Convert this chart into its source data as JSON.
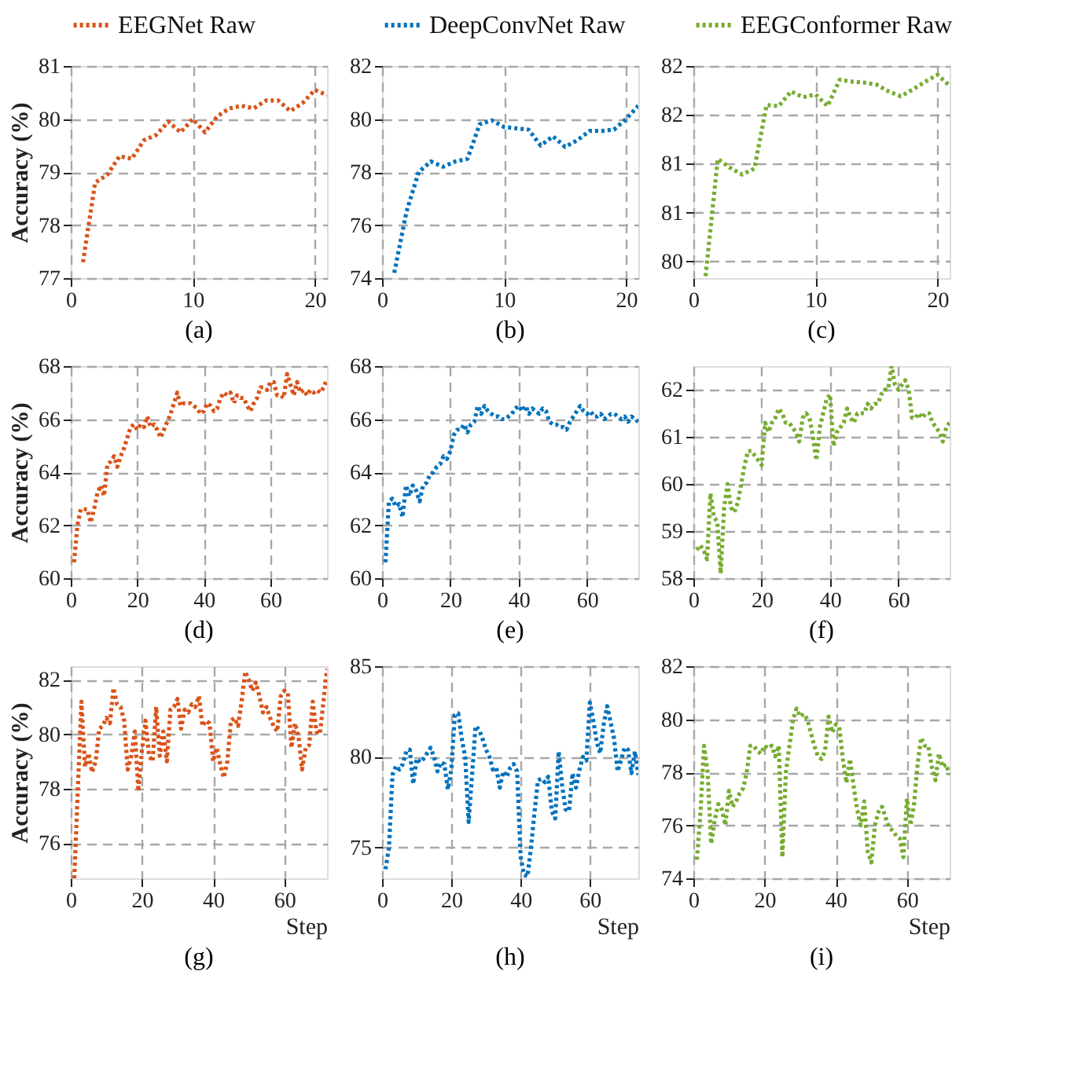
{
  "chart_data": [
    {
      "type": "line",
      "title": "(a)",
      "ylabel": "Accuracy (%)",
      "legend": "top",
      "grid": true,
      "line_style": "dotted",
      "xlim": [
        0,
        21
      ],
      "xticks": [
        0,
        10,
        20
      ],
      "ylim": [
        77,
        81
      ],
      "yticks": [
        77,
        78,
        79,
        80,
        81
      ],
      "x": [
        1,
        2,
        3,
        4,
        5,
        6,
        7,
        8,
        9,
        10,
        11,
        12,
        13,
        14,
        15,
        16,
        17,
        18,
        19,
        20,
        21
      ],
      "series": [
        {
          "name": "EEGNet Raw",
          "color": "#d95319",
          "values": [
            77.3,
            78.8,
            78.95,
            79.3,
            79.25,
            79.6,
            79.7,
            79.95,
            79.75,
            80.0,
            79.75,
            80.05,
            80.2,
            80.25,
            80.2,
            80.35,
            80.35,
            80.15,
            80.3,
            80.55,
            80.45
          ]
        }
      ]
    },
    {
      "type": "line",
      "title": "(b)",
      "legend": "top",
      "grid": true,
      "line_style": "dotted",
      "xlim": [
        0,
        21
      ],
      "xticks": [
        0,
        10,
        20
      ],
      "ylim": [
        74,
        82
      ],
      "yticks": [
        74,
        76,
        78,
        80,
        82
      ],
      "x": [
        1,
        2,
        3,
        4,
        5,
        6,
        7,
        8,
        9,
        10,
        11,
        12,
        13,
        14,
        15,
        16,
        17,
        18,
        19,
        20,
        21
      ],
      "series": [
        {
          "name": "DeepConvNet Raw",
          "color": "#0072bd",
          "values": [
            74.2,
            76.5,
            78.0,
            78.4,
            78.2,
            78.4,
            78.5,
            79.8,
            79.95,
            79.7,
            79.65,
            79.6,
            79.0,
            79.35,
            78.95,
            79.2,
            79.55,
            79.55,
            79.6,
            80.0,
            80.5
          ]
        }
      ]
    },
    {
      "type": "line",
      "title": "(c)",
      "legend": "top",
      "grid": true,
      "line_style": "dotted",
      "xlim": [
        0,
        21
      ],
      "xticks": [
        0,
        10,
        20
      ],
      "ylim": [
        79.83,
        82
      ],
      "yticks": [
        80,
        {
          "value": 80.5,
          "label": "81"
        },
        81,
        {
          "value": 81.5,
          "label": "82"
        },
        82
      ],
      "x": [
        1,
        2,
        3,
        4,
        5,
        6,
        7,
        8,
        9,
        10,
        11,
        12,
        13,
        14,
        15,
        16,
        17,
        18,
        19,
        20,
        21
      ],
      "series": [
        {
          "name": "EEGConformer Raw",
          "color": "#77ac30",
          "values": [
            79.85,
            81.05,
            80.96,
            80.89,
            80.95,
            81.6,
            81.59,
            81.74,
            81.68,
            81.71,
            81.59,
            81.86,
            81.84,
            81.83,
            81.81,
            81.74,
            81.69,
            81.76,
            81.84,
            81.91,
            81.8
          ]
        }
      ]
    },
    {
      "type": "line",
      "title": "(d)",
      "ylabel": "Accuracy (%)",
      "grid": true,
      "line_style": "dotted",
      "xlim": [
        0,
        77
      ],
      "xticks": [
        0,
        20,
        40,
        60
      ],
      "ylim": [
        60,
        68
      ],
      "yticks": [
        60,
        62,
        64,
        66,
        68
      ],
      "x": [
        1,
        2,
        3,
        4,
        5,
        6,
        7,
        8,
        9,
        10,
        11,
        12,
        13,
        14,
        15,
        16,
        17,
        18,
        19,
        20,
        21,
        22,
        23,
        24,
        25,
        26,
        27,
        28,
        29,
        30,
        31,
        32,
        33,
        34,
        35,
        36,
        37,
        38,
        39,
        40,
        41,
        42,
        43,
        44,
        45,
        46,
        47,
        48,
        49,
        50,
        51,
        52,
        53,
        54,
        55,
        56,
        57,
        58,
        59,
        60,
        61,
        62,
        63,
        64,
        65,
        66,
        67,
        68,
        69,
        70,
        71,
        72,
        73,
        74,
        75,
        76,
        77
      ],
      "series": [
        {
          "color": "#d95319",
          "values": [
            60.6,
            62.0,
            62.6,
            62.6,
            62.6,
            62.1,
            62.6,
            63.2,
            63.5,
            63.1,
            64.3,
            64.4,
            64.6,
            64.2,
            64.6,
            64.9,
            65.3,
            65.7,
            65.8,
            65.6,
            65.8,
            65.7,
            66.1,
            65.7,
            65.8,
            65.6,
            65.3,
            65.6,
            65.9,
            66.2,
            66.6,
            67.0,
            66.5,
            66.6,
            66.6,
            66.6,
            66.5,
            66.4,
            66.2,
            66.3,
            66.6,
            66.5,
            66.3,
            66.4,
            66.8,
            67.0,
            66.9,
            67.0,
            66.6,
            66.9,
            66.8,
            66.8,
            66.5,
            66.3,
            66.6,
            66.8,
            67.2,
            67.2,
            67.1,
            67.4,
            67.4,
            66.9,
            66.9,
            66.8,
            67.7,
            67.3,
            66.9,
            67.4,
            67.0,
            67.1,
            66.9,
            67.1,
            67.0,
            67.1,
            67.0,
            67.2,
            67.5
          ]
        }
      ]
    },
    {
      "type": "line",
      "title": "(e)",
      "grid": true,
      "line_style": "dotted",
      "xlim": [
        0,
        75
      ],
      "xticks": [
        0,
        20,
        40,
        60
      ],
      "ylim": [
        60,
        68
      ],
      "yticks": [
        60,
        62,
        64,
        66,
        68
      ],
      "x": [
        1,
        2,
        3,
        4,
        5,
        6,
        7,
        8,
        9,
        10,
        11,
        12,
        13,
        14,
        15,
        16,
        17,
        18,
        19,
        20,
        21,
        22,
        23,
        24,
        25,
        26,
        27,
        28,
        29,
        30,
        31,
        32,
        33,
        34,
        35,
        36,
        37,
        38,
        39,
        40,
        41,
        42,
        43,
        44,
        45,
        46,
        47,
        48,
        49,
        50,
        51,
        52,
        53,
        54,
        55,
        56,
        57,
        58,
        59,
        60,
        61,
        62,
        63,
        64,
        65,
        66,
        67,
        68,
        69,
        70,
        71,
        72,
        73,
        74,
        75
      ],
      "series": [
        {
          "color": "#0072bd",
          "values": [
            60.6,
            62.9,
            63.0,
            62.7,
            62.8,
            62.3,
            63.5,
            63.1,
            63.5,
            63.3,
            62.9,
            63.5,
            63.6,
            63.9,
            64.0,
            64.2,
            64.3,
            64.6,
            64.5,
            64.8,
            65.4,
            65.6,
            65.6,
            65.8,
            65.5,
            65.8,
            65.9,
            66.5,
            66.2,
            66.5,
            66.3,
            66.2,
            66.1,
            66.1,
            66.0,
            66.0,
            66.1,
            66.2,
            66.4,
            66.5,
            66.3,
            66.5,
            66.2,
            66.4,
            66.3,
            66.2,
            66.4,
            66.3,
            65.9,
            65.8,
            65.8,
            65.7,
            65.7,
            65.6,
            65.9,
            66.1,
            66.3,
            66.5,
            66.3,
            66.2,
            66.3,
            66.1,
            66.1,
            66.2,
            66.0,
            66.1,
            66.2,
            66.2,
            66.1,
            66.0,
            66.1,
            65.9,
            66.1,
            66.0,
            65.9
          ]
        }
      ]
    },
    {
      "type": "line",
      "title": "(f)",
      "grid": true,
      "line_style": "dotted",
      "xlim": [
        0,
        75
      ],
      "xticks": [
        0,
        20,
        40,
        60
      ],
      "ylim": [
        58,
        62.5
      ],
      "yticks": [
        58,
        59,
        60,
        61,
        62
      ],
      "x": [
        1,
        2,
        3,
        4,
        5,
        6,
        7,
        8,
        9,
        10,
        11,
        12,
        13,
        14,
        15,
        16,
        17,
        18,
        19,
        20,
        21,
        22,
        23,
        24,
        25,
        26,
        27,
        28,
        29,
        30,
        31,
        32,
        33,
        34,
        35,
        36,
        37,
        38,
        39,
        40,
        41,
        42,
        43,
        44,
        45,
        46,
        47,
        48,
        49,
        50,
        51,
        52,
        53,
        54,
        55,
        56,
        57,
        58,
        59,
        60,
        61,
        62,
        63,
        64,
        65,
        66,
        67,
        68,
        69,
        70,
        71,
        72,
        73,
        74,
        75
      ],
      "series": [
        {
          "color": "#77ac30",
          "values": [
            58.6,
            58.7,
            58.6,
            58.4,
            59.8,
            59.3,
            59.2,
            58.1,
            59.5,
            60.0,
            59.5,
            59.4,
            59.6,
            60.0,
            60.4,
            60.7,
            60.7,
            60.6,
            60.5,
            60.4,
            61.3,
            61.1,
            61.3,
            61.4,
            61.6,
            61.5,
            61.3,
            61.3,
            61.2,
            61.1,
            60.9,
            61.4,
            61.5,
            61.4,
            61.0,
            60.5,
            61.2,
            61.5,
            61.8,
            61.9,
            60.8,
            61.1,
            61.2,
            61.3,
            61.6,
            61.4,
            61.3,
            61.5,
            61.5,
            61.5,
            61.7,
            61.6,
            61.7,
            61.7,
            61.9,
            62.0,
            62.0,
            62.5,
            62.1,
            62.0,
            62.1,
            62.2,
            62.0,
            61.4,
            61.4,
            61.5,
            61.4,
            61.5,
            61.5,
            61.3,
            61.2,
            61.1,
            60.9,
            61.2,
            61.3
          ]
        }
      ]
    },
    {
      "type": "line",
      "title": "(g)",
      "ylabel": "Accuracy (%)",
      "xlabel": "Step",
      "grid": true,
      "line_style": "dotted",
      "xlim": [
        0,
        72
      ],
      "xticks": [
        0,
        20,
        40,
        60
      ],
      "ylim": [
        74.7,
        82.5
      ],
      "yticks": [
        76,
        78,
        80,
        82
      ],
      "x": [
        1,
        2,
        3,
        4,
        5,
        6,
        7,
        8,
        9,
        10,
        11,
        12,
        13,
        14,
        15,
        16,
        17,
        18,
        19,
        20,
        21,
        22,
        23,
        24,
        25,
        26,
        27,
        28,
        29,
        30,
        31,
        32,
        33,
        34,
        35,
        36,
        37,
        38,
        39,
        40,
        41,
        42,
        43,
        44,
        45,
        46,
        47,
        48,
        49,
        50,
        51,
        52,
        53,
        54,
        55,
        56,
        57,
        58,
        59,
        60,
        61,
        62,
        63,
        64,
        65,
        66,
        67,
        68,
        69,
        70,
        71,
        72
      ],
      "series": [
        {
          "color": "#d95319",
          "values": [
            74.7,
            78.0,
            81.2,
            78.8,
            79.3,
            78.6,
            79.0,
            80.2,
            80.3,
            80.6,
            80.4,
            81.7,
            81.1,
            81.0,
            80.5,
            78.7,
            79.2,
            80.1,
            77.9,
            79.4,
            80.5,
            79.2,
            79.0,
            81.0,
            79.2,
            80.1,
            79.0,
            80.9,
            81.0,
            81.3,
            80.2,
            80.9,
            80.8,
            81.1,
            81.0,
            81.4,
            80.3,
            80.5,
            80.4,
            79.0,
            79.5,
            78.9,
            78.4,
            79.0,
            80.5,
            80.6,
            80.3,
            81.2,
            82.3,
            82.0,
            81.6,
            81.9,
            81.4,
            80.8,
            81.0,
            80.6,
            80.3,
            80.1,
            81.4,
            81.6,
            81.5,
            79.5,
            80.4,
            79.9,
            78.7,
            79.5,
            79.6,
            81.2,
            80.1,
            80.0,
            81.2,
            82.4
          ]
        }
      ]
    },
    {
      "type": "line",
      "title": "(h)",
      "xlabel": "Step",
      "grid": true,
      "line_style": "dotted",
      "xlim": [
        0,
        74
      ],
      "xticks": [
        0,
        20,
        40,
        60
      ],
      "ylim": [
        73.3,
        85
      ],
      "yticks": [
        75,
        80,
        85
      ],
      "x": [
        1,
        2,
        3,
        4,
        5,
        6,
        7,
        8,
        9,
        10,
        11,
        12,
        13,
        14,
        15,
        16,
        17,
        18,
        19,
        20,
        21,
        22,
        23,
        24,
        25,
        26,
        27,
        28,
        29,
        30,
        31,
        32,
        33,
        34,
        35,
        36,
        37,
        38,
        39,
        40,
        41,
        42,
        43,
        44,
        45,
        46,
        47,
        48,
        49,
        50,
        51,
        52,
        53,
        54,
        55,
        56,
        57,
        58,
        59,
        60,
        61,
        62,
        63,
        64,
        65,
        66,
        67,
        68,
        69,
        70,
        71,
        72,
        73,
        74
      ],
      "series": [
        {
          "color": "#0072bd",
          "values": [
            73.8,
            75.0,
            79.0,
            79.5,
            79.3,
            79.6,
            80.3,
            80.4,
            78.5,
            79.9,
            79.7,
            79.9,
            80.2,
            80.5,
            80.0,
            79.2,
            79.7,
            79.6,
            78.2,
            79.3,
            82.3,
            82.4,
            81.0,
            80.0,
            76.4,
            79.0,
            81.7,
            81.5,
            81.0,
            80.4,
            80.0,
            79.3,
            79.4,
            78.3,
            79.2,
            78.9,
            79.4,
            79.6,
            79.2,
            74.5,
            73.5,
            73.4,
            75.0,
            76.9,
            78.7,
            78.8,
            78.6,
            78.9,
            77.0,
            76.6,
            80.3,
            78.4,
            77.1,
            77.0,
            79.1,
            78.3,
            79.3,
            80.0,
            79.8,
            83.0,
            82.0,
            80.8,
            80.2,
            81.8,
            82.8,
            81.9,
            81.0,
            79.2,
            79.8,
            80.5,
            80.4,
            79.1,
            80.3,
            79.0
          ]
        }
      ]
    },
    {
      "type": "line",
      "title": "(i)",
      "xlabel": "Step",
      "grid": true,
      "line_style": "dotted",
      "xlim": [
        0,
        72
      ],
      "xticks": [
        0,
        20,
        40,
        60
      ],
      "ylim": [
        74,
        82
      ],
      "yticks": [
        74,
        76,
        78,
        80,
        82
      ],
      "x": [
        1,
        2,
        3,
        4,
        5,
        6,
        7,
        8,
        9,
        10,
        11,
        12,
        13,
        14,
        15,
        16,
        17,
        18,
        19,
        20,
        21,
        22,
        23,
        24,
        25,
        26,
        27,
        28,
        29,
        30,
        31,
        32,
        33,
        34,
        35,
        36,
        37,
        38,
        39,
        40,
        41,
        42,
        43,
        44,
        45,
        46,
        47,
        48,
        49,
        50,
        51,
        52,
        53,
        54,
        55,
        56,
        57,
        58,
        59,
        60,
        61,
        62,
        63,
        64,
        65,
        66,
        67,
        68,
        69,
        70,
        71,
        72
      ],
      "series": [
        {
          "color": "#77ac30",
          "values": [
            74.7,
            76.5,
            79.0,
            78.0,
            75.3,
            76.2,
            76.8,
            76.6,
            76.0,
            77.3,
            76.7,
            76.9,
            77.2,
            77.4,
            78.0,
            79.0,
            79.0,
            78.8,
            78.7,
            79.0,
            78.9,
            79.0,
            78.6,
            79.0,
            74.8,
            78.0,
            79.0,
            80.0,
            80.4,
            80.1,
            80.2,
            80.0,
            79.5,
            79.0,
            78.6,
            78.5,
            78.8,
            80.1,
            79.5,
            79.8,
            79.7,
            78.5,
            77.6,
            78.5,
            77.5,
            76.6,
            76.0,
            76.9,
            75.0,
            74.6,
            76.0,
            76.5,
            76.7,
            76.3,
            75.9,
            75.8,
            75.6,
            75.5,
            74.8,
            77.0,
            76.0,
            76.8,
            78.3,
            79.3,
            79.0,
            79.0,
            78.2,
            77.7,
            78.7,
            78.2,
            78.3,
            77.9
          ]
        }
      ]
    }
  ]
}
